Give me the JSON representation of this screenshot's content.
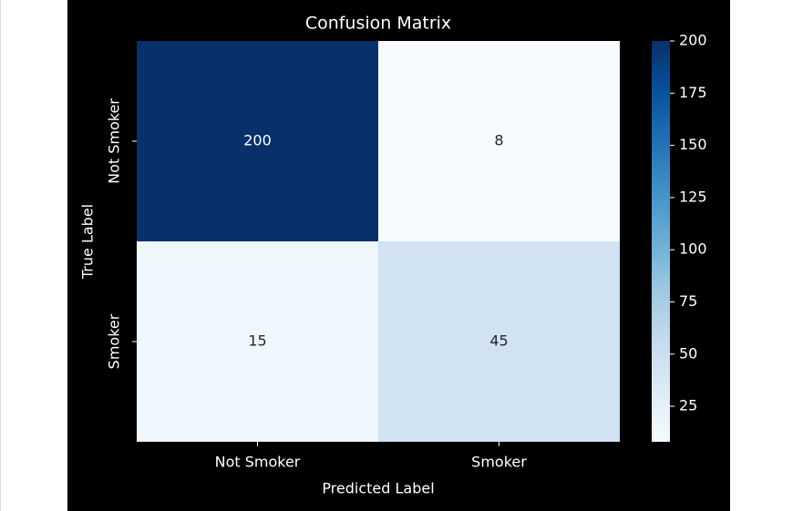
{
  "chart_data": {
    "type": "heatmap",
    "title": "Confusion Matrix",
    "xlabel": "Predicted Label",
    "ylabel": "True Label",
    "x_categories": [
      "Not Smoker",
      "Smoker"
    ],
    "y_categories": [
      "Not Smoker",
      "Smoker"
    ],
    "values": [
      [
        200,
        8
      ],
      [
        15,
        45
      ]
    ],
    "colormap": "Blues",
    "clim": [
      8,
      200
    ],
    "cticks": [
      25,
      50,
      75,
      100,
      125,
      150,
      175,
      200
    ]
  }
}
